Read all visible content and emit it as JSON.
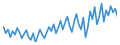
{
  "chart_data": {
    "type": "line",
    "color": "#3a8fd6",
    "tick_labels": false,
    "x": [
      1,
      2,
      3,
      4,
      5,
      6,
      7,
      8,
      9,
      10,
      11,
      12,
      13,
      14,
      15,
      16,
      17,
      18,
      19,
      20,
      21,
      22,
      23,
      24,
      25,
      26,
      27,
      28,
      29,
      30,
      31,
      32,
      33,
      34,
      35,
      36,
      37,
      38,
      39,
      40,
      41,
      42,
      43,
      44,
      45,
      46,
      47,
      48,
      49,
      50,
      51
    ],
    "values": [
      50,
      38,
      45,
      30,
      42,
      35,
      48,
      40,
      28,
      36,
      44,
      30,
      25,
      38,
      20,
      32,
      45,
      35,
      28,
      40,
      50,
      42,
      55,
      38,
      48,
      62,
      45,
      58,
      70,
      52,
      40,
      60,
      75,
      55,
      45,
      68,
      30,
      50,
      80,
      65,
      88,
      55,
      70,
      95,
      60,
      82,
      72,
      90,
      78,
      85,
      70
    ],
    "xlim": [
      1,
      51
    ],
    "ylim": [
      20,
      95
    ]
  }
}
